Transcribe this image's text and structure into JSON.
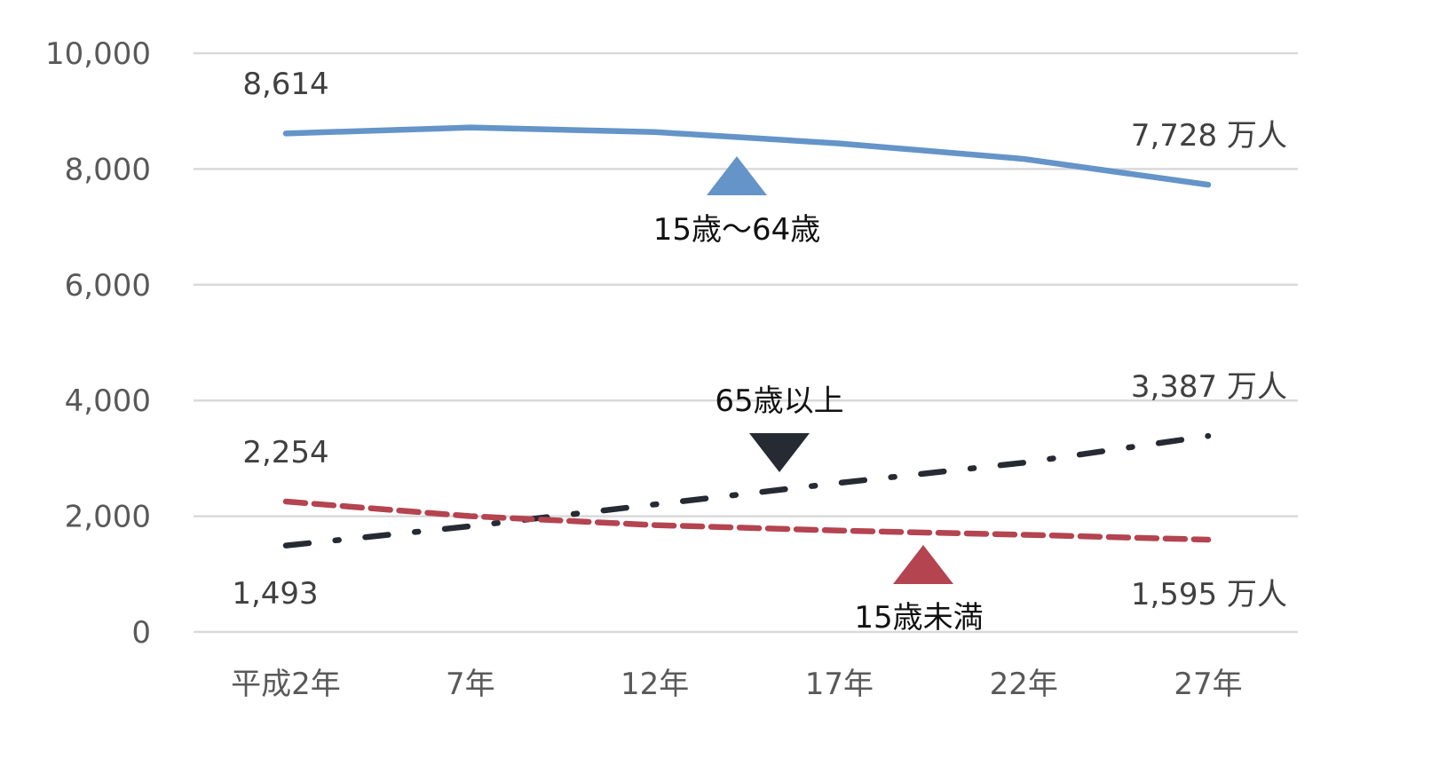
{
  "chart_data": {
    "type": "line",
    "title": "",
    "xlabel": "",
    "ylabel": "",
    "ylim": [
      0,
      10000
    ],
    "yticks": [
      "0",
      "2,000",
      "4,000",
      "6,000",
      "8,000",
      "10,000"
    ],
    "categories": [
      "平成2年",
      "7年",
      "12年",
      "17年",
      "22年",
      "27年"
    ],
    "grid": "horizontal",
    "legend": "none",
    "series": [
      {
        "name": "15歳～64歳",
        "values": [
          8614,
          8717,
          8638,
          8442,
          8174,
          7728
        ],
        "color": "#6494C8",
        "style": "solid",
        "marker": "triangle-up",
        "start_label": "8,614",
        "end_label": "7,728 万人"
      },
      {
        "name": "65歳以上",
        "values": [
          1493,
          1828,
          2204,
          2576,
          2925,
          3387
        ],
        "color": "#262A33",
        "style": "dash-dot",
        "marker": "triangle-down",
        "start_label": "1,493",
        "end_label": "3,387 万人"
      },
      {
        "name": "15歳未満",
        "values": [
          2254,
          2001,
          1847,
          1752,
          1680,
          1595
        ],
        "color": "#B34450",
        "style": "dashed",
        "marker": "triangle-up",
        "start_label": "2,254",
        "end_label": "1,595 万人"
      }
    ]
  }
}
